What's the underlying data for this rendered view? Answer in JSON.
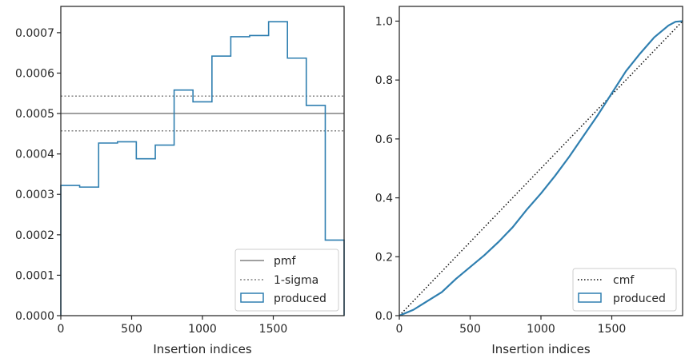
{
  "colors": {
    "produced": "#2f7fb0",
    "pmf": "#808080",
    "sigma": "#808080",
    "cmf": "#111111",
    "axes": "#262626"
  },
  "chart_data": [
    {
      "type": "histogram",
      "title": "",
      "xlabel": "Insertion indices",
      "ylabel": "",
      "xlim": [
        0,
        2000
      ],
      "ylim": [
        0,
        0.000765
      ],
      "xticks": [
        0,
        500,
        1000,
        1500
      ],
      "xtick_labels": [
        "0",
        "500",
        "1000",
        "1500"
      ],
      "yticks": [
        0,
        0.0001,
        0.0002,
        0.0003,
        0.0004,
        0.0005,
        0.0006,
        0.0007
      ],
      "ytick_labels": [
        "0.0000",
        "0.0001",
        "0.0002",
        "0.0003",
        "0.0004",
        "0.0005",
        "0.0006",
        "0.0007"
      ],
      "grid": false,
      "legend_position": "lower-right",
      "pmf": {
        "label": "pmf",
        "value": 0.0005
      },
      "sigma": {
        "label": "1-sigma",
        "upper": 0.000543,
        "lower": 0.000457
      },
      "produced": {
        "label": "produced",
        "bin_edges": [
          0,
          133,
          267,
          400,
          533,
          667,
          800,
          933,
          1067,
          1200,
          1333,
          1467,
          1600,
          1733,
          1867,
          2000
        ],
        "values": [
          0.000322,
          0.000318,
          0.000427,
          0.00043,
          0.000388,
          0.000422,
          0.000558,
          0.000529,
          0.000642,
          0.00069,
          0.000693,
          0.000727,
          0.000637,
          0.00052,
          0.000187
        ]
      }
    },
    {
      "type": "line",
      "title": "",
      "xlabel": "Insertion indices",
      "ylabel": "",
      "xlim": [
        0,
        2000
      ],
      "ylim": [
        0,
        1.05
      ],
      "xticks": [
        0,
        500,
        1000,
        1500
      ],
      "xtick_labels": [
        "0",
        "500",
        "1000",
        "1500"
      ],
      "yticks": [
        0,
        0.2,
        0.4,
        0.6,
        0.8,
        1.0
      ],
      "ytick_labels": [
        "0.0",
        "0.2",
        "0.4",
        "0.6",
        "0.8",
        "1.0"
      ],
      "grid": false,
      "legend_position": "lower-right",
      "cmf": {
        "label": "cmf",
        "x": [
          0,
          2000
        ],
        "y": [
          0,
          1.0
        ]
      },
      "produced": {
        "label": "produced",
        "x": [
          0,
          50,
          100,
          150,
          200,
          250,
          300,
          400,
          500,
          600,
          700,
          800,
          900,
          1000,
          1100,
          1200,
          1300,
          1400,
          1500,
          1600,
          1700,
          1800,
          1900,
          1950,
          2000
        ],
        "y": [
          0,
          0.01,
          0.02,
          0.035,
          0.05,
          0.065,
          0.08,
          0.125,
          0.165,
          0.205,
          0.25,
          0.3,
          0.36,
          0.415,
          0.475,
          0.54,
          0.61,
          0.68,
          0.755,
          0.83,
          0.89,
          0.945,
          0.985,
          0.998,
          1.0
        ]
      }
    }
  ]
}
